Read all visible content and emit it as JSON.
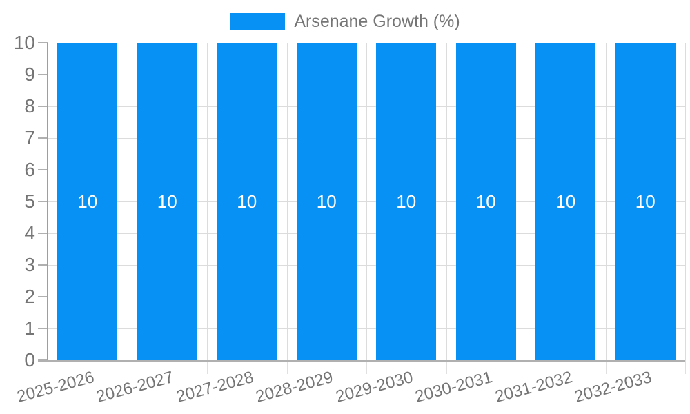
{
  "legend": {
    "label": "Arsenane Growth (%)",
    "position": "top"
  },
  "chart_data": {
    "type": "bar",
    "title": "Arsenane Growth (%)",
    "categories": [
      "2025-2026",
      "2026-2027",
      "2027-2028",
      "2028-2029",
      "2029-2030",
      "2030-2031",
      "2031-2032",
      "2032-2033"
    ],
    "series": [
      {
        "name": "Arsenane Growth (%)",
        "values": [
          10,
          10,
          10,
          10,
          10,
          10,
          10,
          10
        ],
        "color": "#0891f5"
      }
    ],
    "bar_value_labels": [
      "10",
      "10",
      "10",
      "10",
      "10",
      "10",
      "10",
      "10"
    ],
    "xlabel": "",
    "ylabel": "",
    "ylim": [
      0,
      10
    ],
    "yticks": [
      0,
      1,
      2,
      3,
      4,
      5,
      6,
      7,
      8,
      9,
      10
    ],
    "grid": true,
    "legend_position": "top",
    "x_label_rotation_deg": -15
  },
  "colors": {
    "bar": "#0891f5",
    "axis_text": "#757575",
    "bar_value_text": "#ffffff",
    "gridline": "#dcdcdc",
    "x_axis_line": "#b0b0b0",
    "y_axis_line": "#9e9e9e",
    "tick_mark": "#b0b0b0",
    "below_axis_tick": "#e0e0e0"
  }
}
